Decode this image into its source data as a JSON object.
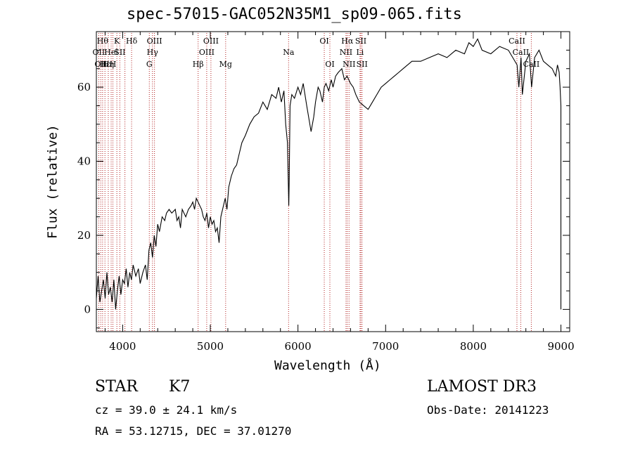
{
  "chart_data": {
    "type": "line",
    "title": "spec-57015-GAC052N35M1_sp09-065.fits",
    "xlabel": "Wavelength (Å)",
    "ylabel": "Flux (relative)",
    "xlim": [
      3700,
      9100
    ],
    "ylim": [
      -6,
      75
    ],
    "xticks": [
      4000,
      5000,
      6000,
      7000,
      8000,
      9000
    ],
    "yticks": [
      0,
      20,
      40,
      60
    ],
    "series": [
      {
        "name": "spectrum",
        "x": [
          3700,
          3720,
          3740,
          3760,
          3780,
          3800,
          3820,
          3840,
          3860,
          3880,
          3900,
          3920,
          3940,
          3960,
          3980,
          4000,
          4020,
          4040,
          4060,
          4080,
          4100,
          4120,
          4150,
          4180,
          4200,
          4230,
          4260,
          4280,
          4300,
          4320,
          4340,
          4360,
          4380,
          4400,
          4420,
          4450,
          4480,
          4500,
          4530,
          4560,
          4600,
          4620,
          4640,
          4660,
          4680,
          4700,
          4720,
          4750,
          4780,
          4800,
          4820,
          4840,
          4860,
          4880,
          4900,
          4920,
          4940,
          4960,
          4980,
          5000,
          5020,
          5040,
          5060,
          5080,
          5100,
          5120,
          5150,
          5170,
          5190,
          5210,
          5240,
          5270,
          5300,
          5330,
          5360,
          5400,
          5450,
          5500,
          5550,
          5600,
          5650,
          5700,
          5750,
          5780,
          5810,
          5840,
          5860,
          5880,
          5895,
          5900,
          5910,
          5930,
          5960,
          6000,
          6030,
          6060,
          6100,
          6150,
          6180,
          6200,
          6230,
          6250,
          6280,
          6300,
          6320,
          6350,
          6380,
          6400,
          6430,
          6460,
          6500,
          6530,
          6560,
          6580,
          6600,
          6630,
          6660,
          6700,
          6750,
          6800,
          6850,
          6900,
          6950,
          7000,
          7050,
          7100,
          7150,
          7200,
          7300,
          7400,
          7500,
          7600,
          7700,
          7800,
          7900,
          7950,
          8000,
          8050,
          8100,
          8200,
          8300,
          8400,
          8450,
          8500,
          8520,
          8545,
          8560,
          8600,
          8640,
          8665,
          8700,
          8750,
          8800,
          8850,
          8900,
          8940,
          8960,
          8980,
          8990,
          9000,
          9000
        ],
        "y": [
          3,
          9,
          2,
          5,
          8,
          3,
          10,
          4,
          6,
          2,
          8,
          0,
          5,
          9,
          4,
          8,
          7,
          11,
          6,
          10,
          8,
          12,
          9,
          11,
          7,
          10,
          12,
          8,
          16,
          18,
          14,
          20,
          17,
          23,
          21,
          25,
          24,
          26,
          27,
          26,
          27,
          24,
          25,
          22,
          27,
          26,
          25,
          27,
          28,
          29,
          27,
          30,
          29,
          28,
          27,
          25,
          24,
          26,
          22,
          25,
          23,
          24,
          21,
          22,
          18,
          25,
          28,
          30,
          27,
          33,
          36,
          38,
          39,
          42,
          45,
          47,
          50,
          52,
          53,
          56,
          54,
          58,
          57,
          60,
          56,
          59,
          50,
          45,
          28,
          35,
          55,
          58,
          57,
          60,
          58,
          61,
          55,
          48,
          52,
          56,
          60,
          59,
          56,
          60,
          61,
          59,
          62,
          60,
          63,
          64,
          65,
          62,
          63,
          62,
          61,
          60,
          58,
          56,
          55,
          54,
          56,
          58,
          60,
          61,
          62,
          63,
          64,
          65,
          67,
          67,
          68,
          69,
          68,
          70,
          69,
          72,
          71,
          73,
          70,
          69,
          71,
          70,
          68,
          66,
          60,
          68,
          58,
          67,
          69,
          60,
          68,
          70,
          67,
          66,
          65,
          63,
          66,
          64,
          60,
          55,
          0
        ]
      }
    ],
    "lines": [
      {
        "wl": 3727,
        "label": "OII",
        "row": 2
      },
      {
        "wl": 3750,
        "label": "OII",
        "row": 3
      },
      {
        "wl": 3771,
        "label": "Hθ",
        "row": 1
      },
      {
        "wl": 3798,
        "label": "Hε",
        "row": 3
      },
      {
        "wl": 3836,
        "label": "Hη",
        "row": 3
      },
      {
        "wl": 3869,
        "label": "Hel",
        "row": 2
      },
      {
        "wl": 3889,
        "label": "H",
        "row": 3
      },
      {
        "wl": 3934,
        "label": "K",
        "row": 1
      },
      {
        "wl": 3968,
        "label": "SII",
        "row": 2
      },
      {
        "wl": 4026,
        "label": "",
        "row": 0
      },
      {
        "wl": 4102,
        "label": "Hδ",
        "row": 1
      },
      {
        "wl": 4304,
        "label": "G",
        "row": 3
      },
      {
        "wl": 4340,
        "label": "Hγ",
        "row": 2
      },
      {
        "wl": 4363,
        "label": "OIII",
        "row": 1
      },
      {
        "wl": 4861,
        "label": "Hβ",
        "row": 3
      },
      {
        "wl": 4959,
        "label": "OIII",
        "row": 2
      },
      {
        "wl": 5007,
        "label": "OIII",
        "row": 1
      },
      {
        "wl": 5175,
        "label": "Mg",
        "row": 3
      },
      {
        "wl": 5893,
        "label": "Na",
        "row": 2
      },
      {
        "wl": 6300,
        "label": "OI",
        "row": 1
      },
      {
        "wl": 6364,
        "label": "OI",
        "row": 3
      },
      {
        "wl": 6548,
        "label": "NII",
        "row": 2
      },
      {
        "wl": 6563,
        "label": "Hα",
        "row": 1
      },
      {
        "wl": 6583,
        "label": "NII",
        "row": 3
      },
      {
        "wl": 6708,
        "label": "Li",
        "row": 2
      },
      {
        "wl": 6717,
        "label": "SII",
        "row": 1
      },
      {
        "wl": 6731,
        "label": "SII",
        "row": 3
      },
      {
        "wl": 8498,
        "label": "CaII",
        "row": 1
      },
      {
        "wl": 8542,
        "label": "CaII",
        "row": 2
      },
      {
        "wl": 8662,
        "label": "CaII",
        "row": 3
      }
    ],
    "annotations": {
      "class": "STAR",
      "subclass": "K7",
      "cz": "cz = 39.0 ± 24.1 km/s",
      "coords": "RA =  53.12715, DEC =  37.01270",
      "survey": "LAMOST DR3",
      "obsdate": "Obs-Date: 20141223"
    },
    "colors": {
      "spectrum": "#000000",
      "lines": "#b22222",
      "axes": "#000000"
    }
  }
}
